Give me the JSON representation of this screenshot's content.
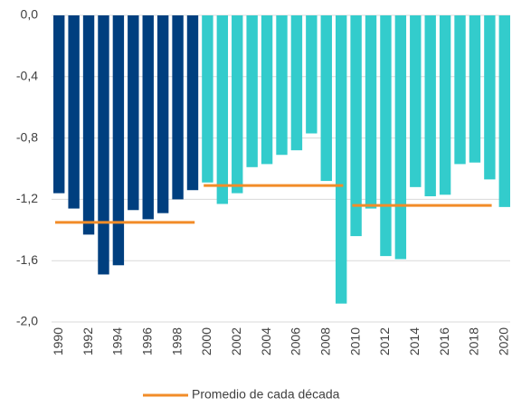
{
  "chart_data": {
    "type": "bar",
    "categories": [
      "1990",
      "1991",
      "1992",
      "1993",
      "1994",
      "1995",
      "1996",
      "1997",
      "1998",
      "1999",
      "2000",
      "2001",
      "2002",
      "2003",
      "2004",
      "2005",
      "2006",
      "2007",
      "2008",
      "2009",
      "2010",
      "2011",
      "2012",
      "2013",
      "2014",
      "2015",
      "2016",
      "2017",
      "2018",
      "2019",
      "2020"
    ],
    "values": [
      -1.16,
      -1.26,
      -1.43,
      -1.69,
      -1.63,
      -1.27,
      -1.33,
      -1.29,
      -1.2,
      -1.14,
      -1.09,
      -1.23,
      -1.16,
      -0.99,
      -0.97,
      -0.91,
      -0.88,
      -0.77,
      -1.08,
      -1.88,
      -1.44,
      -1.26,
      -1.57,
      -1.59,
      -1.12,
      -1.18,
      -1.17,
      -0.97,
      -0.96,
      -1.07,
      -1.25
    ],
    "colors": [
      "#003f7f",
      "#003f7f",
      "#003f7f",
      "#003f7f",
      "#003f7f",
      "#003f7f",
      "#003f7f",
      "#003f7f",
      "#003f7f",
      "#003f7f",
      "#33cccc",
      "#33cccc",
      "#33cccc",
      "#33cccc",
      "#33cccc",
      "#33cccc",
      "#33cccc",
      "#33cccc",
      "#33cccc",
      "#33cccc",
      "#33cccc",
      "#33cccc",
      "#33cccc",
      "#33cccc",
      "#33cccc",
      "#33cccc",
      "#33cccc",
      "#33cccc",
      "#33cccc",
      "#33cccc",
      "#33cccc"
    ],
    "averages": {
      "name": "Promedio de cada década",
      "color": "#f28c28",
      "values": [
        -1.35,
        -1.11,
        -1.24
      ]
    },
    "ylim": [
      0,
      -2.0
    ],
    "yticks": [
      {
        "value": 0,
        "label": "0,0"
      },
      {
        "value": -0.4,
        "label": "-0,4"
      },
      {
        "value": -0.8,
        "label": "-0,8"
      },
      {
        "value": -1.2,
        "label": "-1,2"
      },
      {
        "value": -1.6,
        "label": "-1,6"
      },
      {
        "value": -2.0,
        "label": "-2,0"
      }
    ],
    "grid": true,
    "legend": "bottom"
  }
}
